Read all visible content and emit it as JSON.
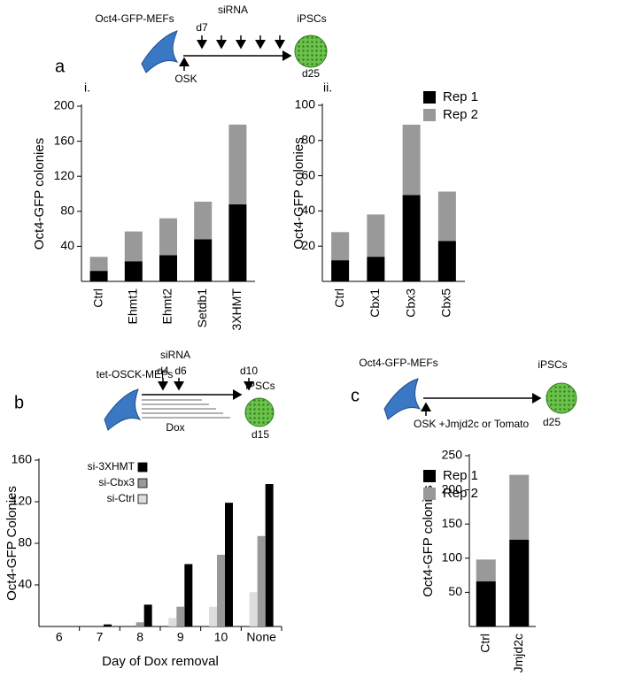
{
  "schematics": [
    {
      "label": "a",
      "cell": "Oct4-GFP-MEFs",
      "treatment": "siRNA",
      "days": [
        "d7"
      ],
      "induction": "OSK",
      "result": "iPSCs",
      "endpoint": "d25"
    },
    {
      "label": "b",
      "cell": "tet-OSCK-MEFs",
      "treatment": "siRNA",
      "days": [
        "d4",
        "d6",
        "d10"
      ],
      "dox": "Dox",
      "result": "iPSCs",
      "endpoint": "d15"
    },
    {
      "label": "c",
      "cell": "Oct4-GFP-MEFs",
      "induction": "OSK +Jmjd2c or Tomato",
      "result": "iPSCs",
      "endpoint": "d25"
    }
  ],
  "chart_data": [
    {
      "type": "bar",
      "stacked": true,
      "subtitle": "i.",
      "ylabel": "Oct4-GFP colonies",
      "categories": [
        "Ctrl",
        "Ehmt1",
        "Ehmt2",
        "Setdb1",
        "3XHMT"
      ],
      "series": [
        {
          "color": "#000000",
          "values": [
            12,
            23,
            30,
            48,
            88
          ]
        },
        {
          "color": "#999999",
          "values": [
            16,
            34,
            42,
            43,
            91
          ]
        }
      ],
      "ylim": [
        0,
        200
      ],
      "yticks": [
        40,
        80,
        120,
        160,
        200
      ]
    },
    {
      "type": "bar",
      "stacked": true,
      "subtitle": "ii.",
      "ylabel": "Oct4-GFP colonies",
      "categories": [
        "Ctrl",
        "Cbx1",
        "Cbx3",
        "Cbx5"
      ],
      "series": [
        {
          "name": "Rep 1",
          "color": "#000000",
          "values": [
            12,
            14,
            49,
            23
          ]
        },
        {
          "name": "Rep 2",
          "color": "#999999",
          "values": [
            16,
            24,
            40,
            28
          ]
        }
      ],
      "ylim": [
        0,
        100
      ],
      "yticks": [
        20,
        40,
        60,
        80,
        100
      ],
      "legend": "upper right"
    },
    {
      "type": "bar",
      "stacked": false,
      "ylabel": "Oct4-GFP Colonies",
      "xlabel": "Day of Dox removal",
      "categories": [
        "6",
        "7",
        "8",
        "9",
        "10",
        "None"
      ],
      "series": [
        {
          "name": "si-3XHMT",
          "color": "#000000",
          "values": [
            0,
            2,
            21,
            60,
            119,
            137
          ]
        },
        {
          "name": "si-Cbx3",
          "color": "#999999",
          "values": [
            0,
            0,
            4,
            19,
            69,
            87
          ]
        },
        {
          "name": "si-Ctrl",
          "color": "#dddddd",
          "values": [
            0,
            0,
            0,
            8,
            19,
            33
          ]
        }
      ],
      "ylim": [
        0,
        160
      ],
      "yticks": [
        40,
        80,
        120,
        160
      ],
      "legend": "upper left"
    },
    {
      "type": "bar",
      "stacked": true,
      "ylabel": "Oct4-GFP colonies",
      "categories": [
        "Ctrl",
        "Jmjd2c"
      ],
      "series": [
        {
          "name": "Rep 1",
          "color": "#000000",
          "values": [
            66,
            127
          ]
        },
        {
          "name": "Rep 2",
          "color": "#999999",
          "values": [
            32,
            95
          ]
        }
      ],
      "ylim": [
        0,
        250
      ],
      "yticks": [
        50,
        100,
        150,
        200,
        250
      ],
      "legend": "upper right"
    }
  ]
}
